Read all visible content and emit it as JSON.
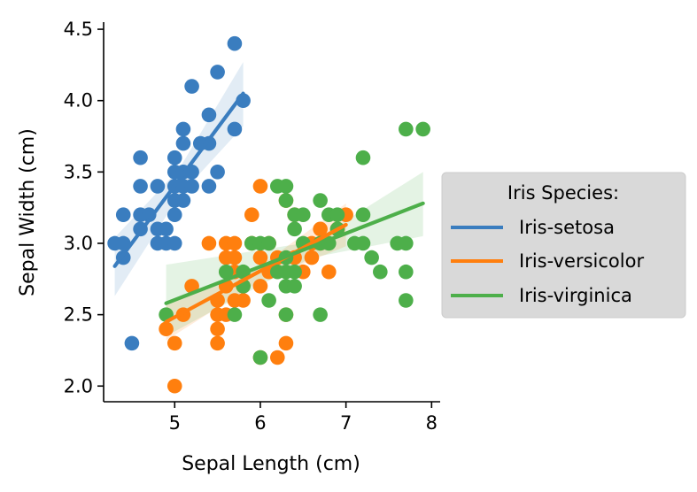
{
  "chart_data": {
    "type": "scatter",
    "xlabel": "Sepal Length (cm)",
    "ylabel": "Sepal Width (cm)",
    "xlim": [
      4.17,
      8.1
    ],
    "ylim": [
      1.89,
      4.55
    ],
    "xticks": [
      5,
      6,
      7,
      8
    ],
    "yticks": [
      2.0,
      2.5,
      3.0,
      3.5,
      4.0,
      4.5
    ],
    "xtick_labels": [
      "5",
      "6",
      "7",
      "8"
    ],
    "ytick_labels": [
      "2.0",
      "2.5",
      "3.0",
      "3.5",
      "4.0",
      "4.5"
    ],
    "legend": {
      "title": "Iris Species:",
      "placement": "center-right",
      "entries": [
        "Iris-setosa",
        "Iris-versicolor",
        "Iris-virginica"
      ]
    },
    "series": [
      {
        "name": "Iris-setosa",
        "color": "#3a7dbf",
        "points": [
          [
            4.3,
            3.0
          ],
          [
            4.4,
            2.9
          ],
          [
            4.4,
            3.0
          ],
          [
            4.4,
            3.2
          ],
          [
            4.5,
            2.3
          ],
          [
            4.6,
            3.1
          ],
          [
            4.6,
            3.2
          ],
          [
            4.6,
            3.4
          ],
          [
            4.6,
            3.6
          ],
          [
            4.7,
            3.2
          ],
          [
            4.8,
            3.0
          ],
          [
            4.8,
            3.1
          ],
          [
            4.8,
            3.4
          ],
          [
            4.9,
            3.0
          ],
          [
            4.9,
            3.1
          ],
          [
            5.0,
            3.0
          ],
          [
            5.0,
            3.2
          ],
          [
            5.0,
            3.3
          ],
          [
            5.0,
            3.4
          ],
          [
            5.0,
            3.5
          ],
          [
            5.0,
            3.6
          ],
          [
            5.1,
            3.3
          ],
          [
            5.1,
            3.4
          ],
          [
            5.1,
            3.5
          ],
          [
            5.1,
            3.7
          ],
          [
            5.1,
            3.8
          ],
          [
            5.2,
            3.4
          ],
          [
            5.2,
            3.5
          ],
          [
            5.2,
            4.1
          ],
          [
            5.3,
            3.7
          ],
          [
            5.4,
            3.4
          ],
          [
            5.4,
            3.7
          ],
          [
            5.4,
            3.9
          ],
          [
            5.5,
            3.5
          ],
          [
            5.5,
            4.2
          ],
          [
            5.7,
            3.8
          ],
          [
            5.7,
            4.4
          ],
          [
            5.8,
            4.0
          ]
        ],
        "fit": {
          "x": [
            4.3,
            5.8
          ],
          "y": [
            2.84,
            4.05
          ]
        },
        "ci": {
          "x": [
            4.3,
            5.05,
            5.8
          ],
          "lower": [
            2.63,
            3.33,
            3.82
          ],
          "upper": [
            3.04,
            3.52,
            4.27
          ]
        }
      },
      {
        "name": "Iris-versicolor",
        "color": "#ff7f0e",
        "points": [
          [
            4.9,
            2.4
          ],
          [
            5.0,
            2.0
          ],
          [
            5.0,
            2.3
          ],
          [
            5.1,
            2.5
          ],
          [
            5.2,
            2.7
          ],
          [
            5.4,
            3.0
          ],
          [
            5.5,
            2.3
          ],
          [
            5.5,
            2.4
          ],
          [
            5.5,
            2.5
          ],
          [
            5.5,
            2.6
          ],
          [
            5.6,
            2.5
          ],
          [
            5.6,
            2.7
          ],
          [
            5.6,
            2.9
          ],
          [
            5.6,
            3.0
          ],
          [
            5.7,
            2.6
          ],
          [
            5.7,
            2.8
          ],
          [
            5.7,
            2.9
          ],
          [
            5.7,
            3.0
          ],
          [
            5.8,
            2.6
          ],
          [
            5.8,
            2.7
          ],
          [
            5.9,
            3.0
          ],
          [
            5.9,
            3.2
          ],
          [
            6.0,
            2.2
          ],
          [
            6.0,
            2.7
          ],
          [
            6.0,
            2.9
          ],
          [
            6.0,
            3.4
          ],
          [
            6.1,
            2.8
          ],
          [
            6.1,
            3.0
          ],
          [
            6.2,
            2.2
          ],
          [
            6.2,
            2.9
          ],
          [
            6.3,
            2.3
          ],
          [
            6.3,
            2.5
          ],
          [
            6.3,
            3.3
          ],
          [
            6.4,
            2.9
          ],
          [
            6.4,
            3.2
          ],
          [
            6.5,
            2.8
          ],
          [
            6.6,
            2.9
          ],
          [
            6.6,
            3.0
          ],
          [
            6.7,
            3.0
          ],
          [
            6.7,
            3.1
          ],
          [
            6.8,
            2.8
          ],
          [
            6.9,
            3.1
          ],
          [
            7.0,
            3.2
          ]
        ],
        "fit": {
          "x": [
            4.9,
            7.0
          ],
          "y": [
            2.45,
            3.13
          ]
        },
        "ci": {
          "x": [
            4.9,
            5.95,
            7.0
          ],
          "lower": [
            2.32,
            2.72,
            2.98
          ],
          "upper": [
            2.58,
            2.82,
            3.28
          ]
        }
      },
      {
        "name": "Iris-virginica",
        "color": "#4daf4a",
        "points": [
          [
            4.9,
            2.5
          ],
          [
            5.6,
            2.8
          ],
          [
            5.7,
            2.5
          ],
          [
            5.8,
            2.7
          ],
          [
            5.8,
            2.8
          ],
          [
            5.9,
            3.0
          ],
          [
            6.0,
            2.2
          ],
          [
            6.0,
            3.0
          ],
          [
            6.1,
            2.6
          ],
          [
            6.1,
            3.0
          ],
          [
            6.2,
            2.8
          ],
          [
            6.2,
            3.4
          ],
          [
            6.3,
            2.5
          ],
          [
            6.3,
            2.7
          ],
          [
            6.3,
            2.8
          ],
          [
            6.3,
            2.9
          ],
          [
            6.3,
            3.3
          ],
          [
            6.3,
            3.4
          ],
          [
            6.4,
            2.7
          ],
          [
            6.4,
            2.8
          ],
          [
            6.4,
            3.1
          ],
          [
            6.4,
            3.2
          ],
          [
            6.5,
            3.0
          ],
          [
            6.5,
            3.2
          ],
          [
            6.7,
            2.5
          ],
          [
            6.7,
            3.0
          ],
          [
            6.7,
            3.3
          ],
          [
            6.8,
            3.0
          ],
          [
            6.8,
            3.2
          ],
          [
            6.9,
            3.1
          ],
          [
            6.9,
            3.2
          ],
          [
            7.1,
            3.0
          ],
          [
            7.2,
            3.0
          ],
          [
            7.2,
            3.2
          ],
          [
            7.2,
            3.6
          ],
          [
            7.3,
            2.9
          ],
          [
            7.4,
            2.8
          ],
          [
            7.6,
            3.0
          ],
          [
            7.7,
            2.6
          ],
          [
            7.7,
            2.8
          ],
          [
            7.7,
            3.0
          ],
          [
            7.7,
            3.8
          ],
          [
            7.9,
            3.8
          ]
        ],
        "fit": {
          "x": [
            4.9,
            7.9
          ],
          "y": [
            2.58,
            3.28
          ]
        },
        "ci": {
          "x": [
            4.9,
            6.6,
            7.9
          ],
          "lower": [
            2.35,
            2.9,
            3.05
          ],
          "upper": [
            2.85,
            3.01,
            3.5
          ]
        }
      }
    ]
  }
}
